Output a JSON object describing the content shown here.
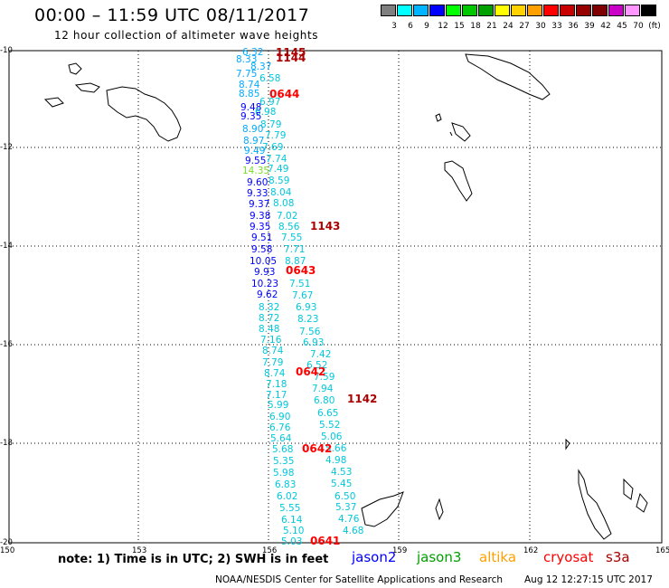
{
  "title": "00:00 – 11:59 UTC 08/11/2017",
  "subtitle": "12 hour collection of altimeter wave heights",
  "colorbar": {
    "labels": [
      "3",
      "6",
      "9",
      "12",
      "15",
      "18",
      "21",
      "24",
      "27",
      "30",
      "33",
      "36",
      "39",
      "42",
      "45",
      "70",
      "(ft)"
    ],
    "colors": [
      "#7f7f7f",
      "#00ffff",
      "#00b4ff",
      "#0000ff",
      "#00ff00",
      "#00c800",
      "#00a000",
      "#ffff00",
      "#ffd200",
      "#ffa000",
      "#ff0000",
      "#c80000",
      "#960000",
      "#7f0000",
      "#c800c8",
      "#ff96ff",
      "#000000"
    ]
  },
  "axes": {
    "lon_ticks": [
      "150",
      "153",
      "156",
      "159",
      "162",
      "165"
    ],
    "lat_ticks": [
      "-10",
      "-12",
      "-14",
      "-16",
      "-18",
      "-20"
    ]
  },
  "wave_colors": {
    "jason2": "#0000ff",
    "cyan": "#00c8dc",
    "lightblue": "#00aaff",
    "green": "#7ddc28"
  },
  "pass_colors": {
    "red": "#ff0000",
    "darkred": "#aa0000"
  },
  "wave_labels": [
    {
      "v": "6.32",
      "c": "lightblue"
    },
    {
      "v": "8.33",
      "c": "lightblue"
    },
    {
      "v": "8.37",
      "c": "lightblue"
    },
    {
      "v": "7.75",
      "c": "lightblue"
    },
    {
      "v": "6.58",
      "c": "cyan"
    },
    {
      "v": "8.74",
      "c": "lightblue"
    },
    {
      "v": "8.85",
      "c": "lightblue"
    },
    {
      "v": "6.97",
      "c": "cyan"
    },
    {
      "v": "9.48",
      "c": "jason2"
    },
    {
      "v": "6.98",
      "c": "cyan"
    },
    {
      "v": "9.35",
      "c": "jason2"
    },
    {
      "v": "8.79",
      "c": "cyan"
    },
    {
      "v": "8.90",
      "c": "lightblue"
    },
    {
      "v": "7.79",
      "c": "cyan"
    },
    {
      "v": "8.97",
      "c": "lightblue"
    },
    {
      "v": "7.69",
      "c": "cyan"
    },
    {
      "v": "9.49",
      "c": "lightblue"
    },
    {
      "v": "7.74",
      "c": "cyan"
    },
    {
      "v": "9.55",
      "c": "jason2"
    },
    {
      "v": "14.35",
      "c": "green"
    },
    {
      "v": "7.49",
      "c": "cyan"
    },
    {
      "v": "9.60",
      "c": "jason2"
    },
    {
      "v": "8.59",
      "c": "cyan"
    },
    {
      "v": "9.33",
      "c": "jason2"
    },
    {
      "v": "8.04",
      "c": "cyan"
    },
    {
      "v": "9.37",
      "c": "jason2"
    },
    {
      "v": "8.08",
      "c": "cyan"
    },
    {
      "v": "9.38",
      "c": "jason2"
    },
    {
      "v": "7.02",
      "c": "cyan"
    },
    {
      "v": "9.35",
      "c": "jason2"
    },
    {
      "v": "8.56",
      "c": "cyan"
    },
    {
      "v": "9.51",
      "c": "jason2"
    },
    {
      "v": "7.55",
      "c": "cyan"
    },
    {
      "v": "9.58",
      "c": "jason2"
    },
    {
      "v": "7.71",
      "c": "cyan"
    },
    {
      "v": "10.05",
      "c": "jason2"
    },
    {
      "v": "8.87",
      "c": "cyan"
    },
    {
      "v": "9.93",
      "c": "jason2"
    },
    {
      "v": "10.23",
      "c": "jason2"
    },
    {
      "v": "7.51",
      "c": "cyan"
    },
    {
      "v": "9.62",
      "c": "jason2"
    },
    {
      "v": "7.67",
      "c": "cyan"
    },
    {
      "v": "8.32",
      "c": "cyan"
    },
    {
      "v": "6.93",
      "c": "cyan"
    },
    {
      "v": "8.72",
      "c": "cyan"
    },
    {
      "v": "8.23",
      "c": "cyan"
    },
    {
      "v": "8.48",
      "c": "cyan"
    },
    {
      "v": "7.56",
      "c": "cyan"
    },
    {
      "v": "7.16",
      "c": "cyan"
    },
    {
      "v": "6.93",
      "c": "cyan"
    },
    {
      "v": "8.74",
      "c": "cyan"
    },
    {
      "v": "7.42",
      "c": "cyan"
    },
    {
      "v": "7.79",
      "c": "cyan"
    },
    {
      "v": "6.52",
      "c": "cyan"
    },
    {
      "v": "8.74",
      "c": "cyan"
    },
    {
      "v": "7.59",
      "c": "cyan"
    },
    {
      "v": "7.18",
      "c": "cyan"
    },
    {
      "v": "7.94",
      "c": "cyan"
    },
    {
      "v": "7.17",
      "c": "cyan"
    },
    {
      "v": "6.80",
      "c": "cyan"
    },
    {
      "v": "5.99",
      "c": "cyan"
    },
    {
      "v": "6.65",
      "c": "cyan"
    },
    {
      "v": "6.90",
      "c": "cyan"
    },
    {
      "v": "5.52",
      "c": "cyan"
    },
    {
      "v": "6.76",
      "c": "cyan"
    },
    {
      "v": "5.06",
      "c": "cyan"
    },
    {
      "v": "5.64",
      "c": "cyan"
    },
    {
      "v": "5.66",
      "c": "cyan"
    },
    {
      "v": "5.68",
      "c": "cyan"
    },
    {
      "v": "4.98",
      "c": "cyan"
    },
    {
      "v": "5.35",
      "c": "cyan"
    },
    {
      "v": "4.53",
      "c": "cyan"
    },
    {
      "v": "5.98",
      "c": "cyan"
    },
    {
      "v": "5.45",
      "c": "cyan"
    },
    {
      "v": "6.83",
      "c": "cyan"
    },
    {
      "v": "6.50",
      "c": "cyan"
    },
    {
      "v": "6.02",
      "c": "cyan"
    },
    {
      "v": "5.37",
      "c": "cyan"
    },
    {
      "v": "5.55",
      "c": "cyan"
    },
    {
      "v": "4.76",
      "c": "cyan"
    },
    {
      "v": "6.14",
      "c": "cyan"
    },
    {
      "v": "4.68",
      "c": "cyan"
    },
    {
      "v": "5.10",
      "c": "cyan"
    },
    {
      "v": "5.03",
      "c": "cyan"
    }
  ],
  "pass_labels": [
    {
      "v": "1145",
      "c": "darkred"
    },
    {
      "v": "1144",
      "c": "darkred"
    },
    {
      "v": "0644",
      "c": "red"
    },
    {
      "v": "1143",
      "c": "darkred"
    },
    {
      "v": "0643",
      "c": "red"
    },
    {
      "v": "0642",
      "c": "red"
    },
    {
      "v": "1142",
      "c": "darkred"
    },
    {
      "v": "0642",
      "c": "red"
    },
    {
      "v": "0641",
      "c": "red"
    }
  ],
  "footer": {
    "note": "note: 1) Time is in UTC; 2) SWH is in feet",
    "legend": [
      {
        "name": "jason2",
        "color": "#0000ff"
      },
      {
        "name": "jason3",
        "color": "#00a000"
      },
      {
        "name": "altika",
        "color": "#ffa000"
      },
      {
        "name": "cryosat",
        "color": "#ff0000"
      },
      {
        "name": "s3a",
        "color": "#aa0000"
      }
    ],
    "credit": "NOAA/NESDIS Center for Satellite Applications and Research",
    "timestamp": "Aug 12 12:27:15 UTC 2017"
  }
}
